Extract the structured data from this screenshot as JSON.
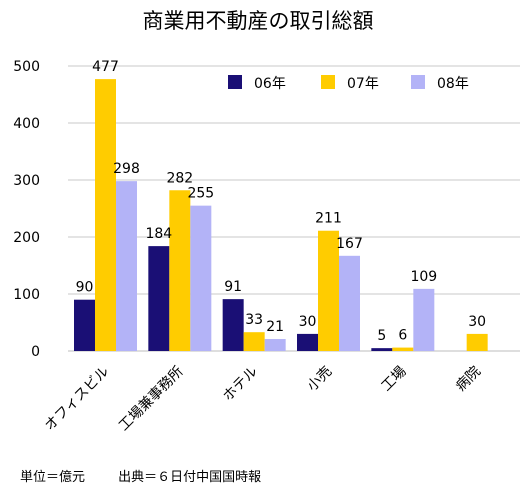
{
  "chart_data": {
    "type": "bar",
    "title": "商業用不動産の取引総額",
    "categories": [
      "オフィスビル",
      "工場兼事務所",
      "ホテル",
      "小売",
      "工場",
      "病院"
    ],
    "series": [
      {
        "name": "06年",
        "color": "#1a0f75",
        "values": [
          90,
          184,
          91,
          30,
          5,
          null
        ]
      },
      {
        "name": "07年",
        "color": "#ffcc00",
        "values": [
          477,
          282,
          33,
          211,
          6,
          30
        ]
      },
      {
        "name": "08年",
        "color": "#b3b3f7",
        "values": [
          298,
          255,
          21,
          167,
          109,
          null
        ]
      }
    ],
    "ylim": [
      0,
      500
    ],
    "yticks": [
      0,
      100,
      200,
      300,
      400,
      500
    ],
    "grid": true,
    "legend_position": "top-right",
    "xlabel": "",
    "ylabel": ""
  },
  "footer": {
    "unit": "単位＝億元",
    "source": "出典＝６日付中国国時報"
  }
}
